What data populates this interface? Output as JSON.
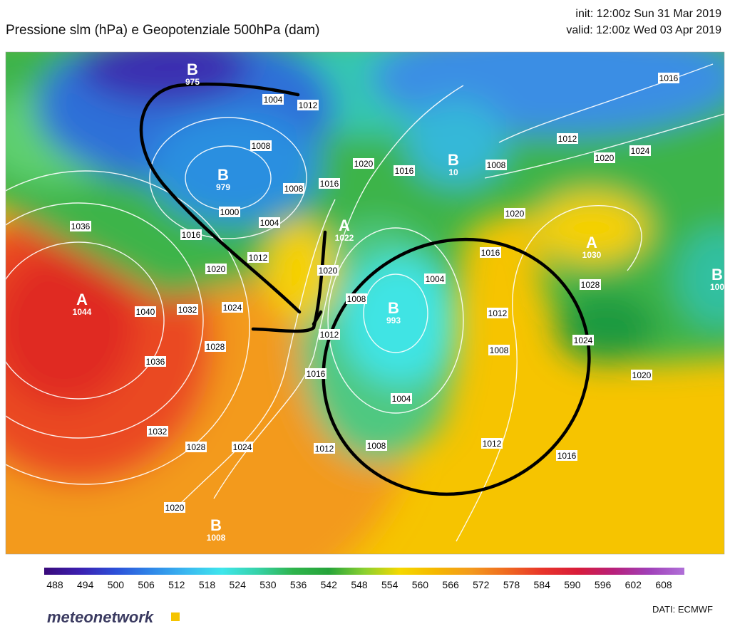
{
  "header": {
    "title": "Pressione slm (hPa) e Geopotenziale 500hPa (dam)",
    "init": "init: 12:00z Sun 31 Mar 2019",
    "valid": "valid: 12:00z Wed 03 Apr 2019"
  },
  "map": {
    "isobar_labels": [
      "1004",
      "1012",
      "1008",
      "1000",
      "1004",
      "1008",
      "1016",
      "1020",
      "1016",
      "1008",
      "1012",
      "1020",
      "1024",
      "1016",
      "1036",
      "1016",
      "1012",
      "1020",
      "1040",
      "1032",
      "1024",
      "1028",
      "1036",
      "1020",
      "1020",
      "1016",
      "1004",
      "1008",
      "1012",
      "1028",
      "1024",
      "1008",
      "1012",
      "1016",
      "1004",
      "1020",
      "1032",
      "1028",
      "1024",
      "1008",
      "1012",
      "1012",
      "1016",
      "1020"
    ],
    "centers": [
      {
        "letter": "B",
        "value": "975"
      },
      {
        "letter": "B",
        "value": "979"
      },
      {
        "letter": "A",
        "value": "1022"
      },
      {
        "letter": "B",
        "value": "10"
      },
      {
        "letter": "A",
        "value": "1044"
      },
      {
        "letter": "B",
        "value": "993"
      },
      {
        "letter": "A",
        "value": "1030"
      },
      {
        "letter": "B",
        "value": "1008"
      },
      {
        "letter": "B",
        "value": "100"
      }
    ]
  },
  "colorbar": {
    "labels": [
      "488",
      "494",
      "500",
      "506",
      "512",
      "518",
      "524",
      "530",
      "536",
      "542",
      "548",
      "554",
      "560",
      "566",
      "572",
      "578",
      "584",
      "590",
      "596",
      "602",
      "608"
    ],
    "colors": [
      "#3a0a7a",
      "#3b1fb0",
      "#2c4fd8",
      "#2f86e8",
      "#3ab8f0",
      "#3fe6ec",
      "#36d2a8",
      "#2fb44c",
      "#26a43a",
      "#8ad030",
      "#f5d800",
      "#f5b800",
      "#f39a1d",
      "#ef6a20",
      "#e8352a",
      "#d81c3a",
      "#b8207a",
      "#a040b8",
      "#b070d8"
    ]
  },
  "footer": {
    "logo": "meteonetwork",
    "source": "DATI:  ECMWF"
  }
}
